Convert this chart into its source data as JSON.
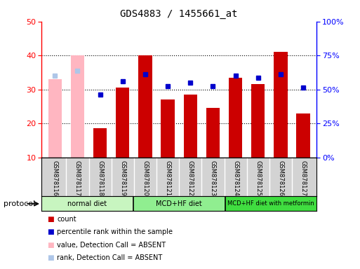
{
  "title": "GDS4883 / 1455661_at",
  "samples": [
    "GSM878116",
    "GSM878117",
    "GSM878118",
    "GSM878119",
    "GSM878120",
    "GSM878121",
    "GSM878122",
    "GSM878123",
    "GSM878124",
    "GSM878125",
    "GSM878126",
    "GSM878127"
  ],
  "count_values": [
    33,
    40,
    18.5,
    30.5,
    40,
    27,
    28.5,
    24.5,
    33.5,
    31.5,
    41,
    23
  ],
  "percentile_values": [
    34,
    35.5,
    28.5,
    32.5,
    34.5,
    31,
    32,
    31,
    34,
    33.5,
    34.5,
    30.5
  ],
  "absent_mask": [
    true,
    true,
    false,
    false,
    false,
    false,
    false,
    false,
    false,
    false,
    false,
    false
  ],
  "bar_color_present": "#cc0000",
  "bar_color_absent": "#ffb6c1",
  "dot_color_present": "#0000cc",
  "dot_color_absent": "#aec6e8",
  "ylim_left": [
    10,
    50
  ],
  "ylim_right": [
    0,
    100
  ],
  "yticks_left": [
    10,
    20,
    30,
    40,
    50
  ],
  "yticks_right": [
    0,
    25,
    50,
    75,
    100
  ],
  "yticklabels_right": [
    "0%",
    "25%",
    "50%",
    "75%",
    "100%"
  ],
  "bar_width": 0.6,
  "group_labels": [
    "normal diet",
    "MCD+HF diet",
    "MCD+HF diet with metformin"
  ],
  "group_boundaries": [
    0,
    4,
    8,
    12
  ],
  "group_colors": [
    "#c8f5c0",
    "#90ee90",
    "#40dd40"
  ],
  "legend_items": [
    {
      "label": "count",
      "color": "#cc0000"
    },
    {
      "label": "percentile rank within the sample",
      "color": "#0000cc"
    },
    {
      "label": "value, Detection Call = ABSENT",
      "color": "#ffb6c1"
    },
    {
      "label": "rank, Detection Call = ABSENT",
      "color": "#aec6e8"
    }
  ]
}
